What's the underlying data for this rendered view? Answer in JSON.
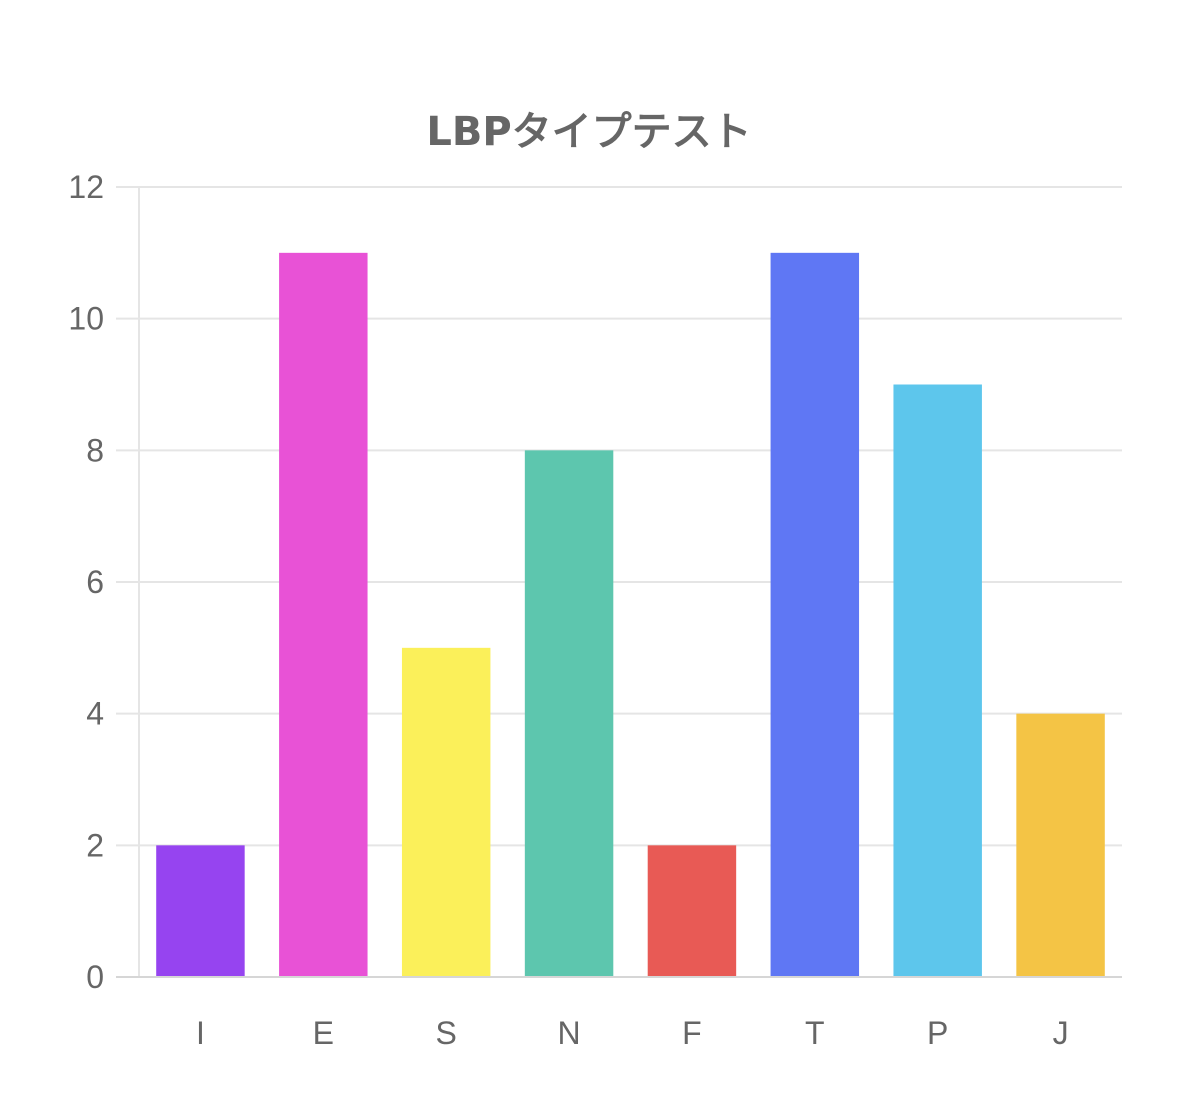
{
  "chart_data": {
    "type": "bar",
    "title": "LBPタイプテスト",
    "xlabel": "",
    "ylabel": "",
    "categories": [
      "I",
      "E",
      "S",
      "N",
      "F",
      "T",
      "P",
      "J"
    ],
    "values": [
      2,
      11,
      5,
      8,
      2,
      11,
      9,
      4
    ],
    "colors": [
      "#9644f0",
      "#e852d6",
      "#fbf05a",
      "#5dc6ae",
      "#e85a55",
      "#5f77f4",
      "#5dc6ec",
      "#f4c445"
    ],
    "ylim": [
      0,
      12
    ],
    "yticks": [
      0,
      2,
      4,
      6,
      8,
      10,
      12
    ],
    "grid": true,
    "legend": "none"
  }
}
